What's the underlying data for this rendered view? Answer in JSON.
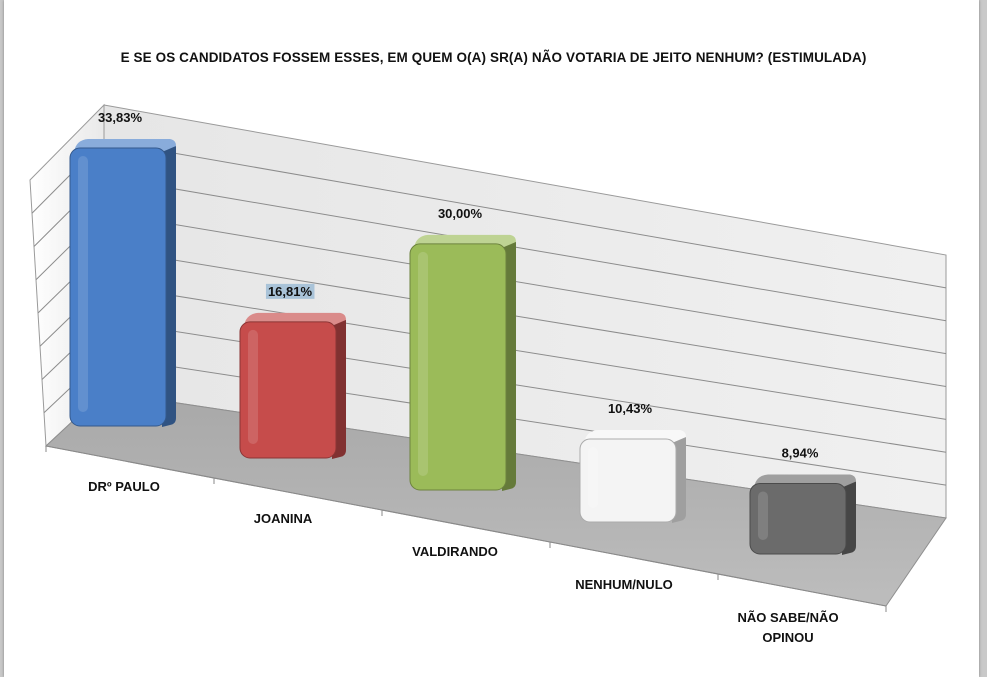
{
  "chart_data": {
    "type": "bar",
    "title": "E SE OS CANDIDATOS FOSSEM ESSES, EM QUEM O(A) SR(A) NÃO VOTARIA DE JEITO NENHUM? (ESTIMULADA)",
    "categories": [
      [
        "DRº PAULO"
      ],
      [
        "JOANINA"
      ],
      [
        "VALDIRANDO"
      ],
      [
        "NENHUM/NULO"
      ],
      [
        "NÃO SABE/NÃO",
        "OPINOU"
      ]
    ],
    "values": [
      33.83,
      16.81,
      30.0,
      10.43,
      8.94
    ],
    "value_labels": [
      "33,83%",
      "16,81%",
      "30,00%",
      "10,43%",
      "8,94%"
    ],
    "colors": [
      "#4a7fc8",
      "#c64c4b",
      "#9bbb59",
      "#f4f4f4",
      "#6b6b6b"
    ],
    "ylim": [
      0,
      40
    ],
    "grid": true,
    "legend": "none",
    "style": "3d-perspective"
  }
}
